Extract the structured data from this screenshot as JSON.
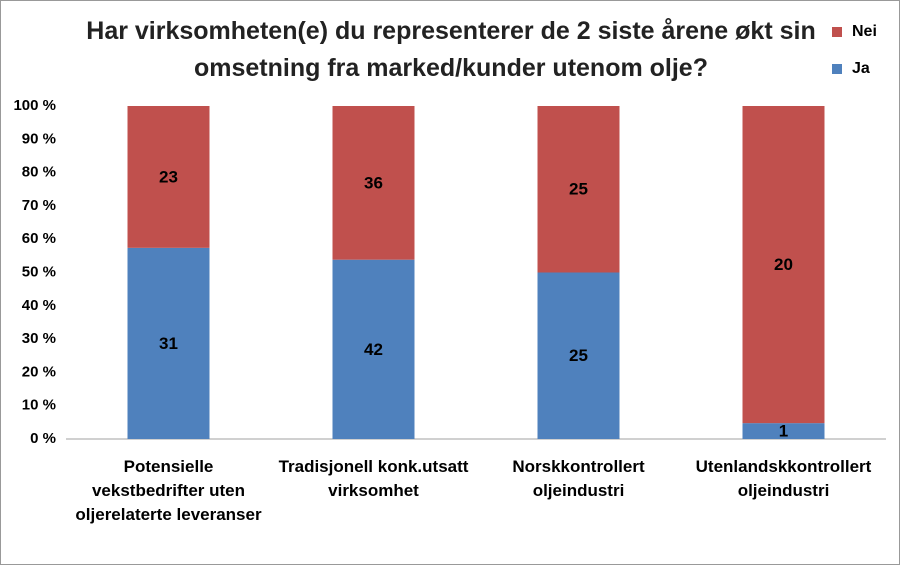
{
  "chart_data": {
    "type": "bar",
    "stacked": "percent",
    "title": "Har virksomheten(e) du representerer de 2 siste årene økt sin omsetning fra marked/kunder utenom olje?",
    "categories": [
      "Potensielle vekstbedrifter uten oljerelaterte leveranser",
      "Tradisjonell konk.utsatt virksomhet",
      "Norskkontrollert oljeindustri",
      "Utenlandskkontrollert oljeindustri"
    ],
    "series": [
      {
        "name": "Ja",
        "color": "#4f81bd",
        "values": [
          31,
          42,
          25,
          1
        ]
      },
      {
        "name": "Nei",
        "color": "#c0504d",
        "values": [
          23,
          36,
          25,
          20
        ]
      }
    ],
    "ylim": [
      0,
      100
    ],
    "yticks": [
      {
        "value": 0,
        "label": "0 %"
      },
      {
        "value": 10,
        "label": "10 %"
      },
      {
        "value": 20,
        "label": "20 %"
      },
      {
        "value": 30,
        "label": "30 %"
      },
      {
        "value": 40,
        "label": "40 %"
      },
      {
        "value": 50,
        "label": "50 %"
      },
      {
        "value": 60,
        "label": "60 %"
      },
      {
        "value": 70,
        "label": "70 %"
      },
      {
        "value": 80,
        "label": "80 %"
      },
      {
        "value": 90,
        "label": "90 %"
      },
      {
        "value": 100,
        "label": "100 %"
      }
    ],
    "grid": false,
    "legend": "top-right"
  }
}
